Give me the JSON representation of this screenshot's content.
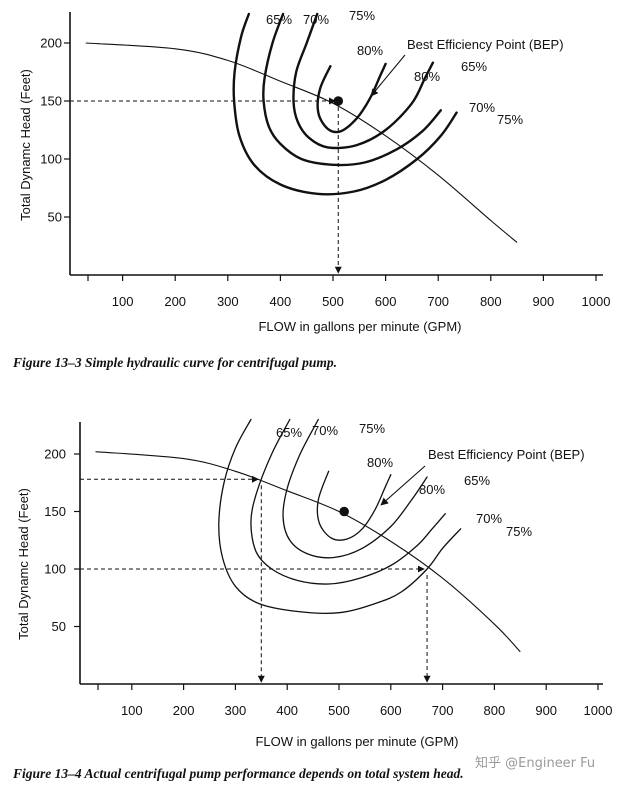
{
  "chart_data": [
    {
      "type": "line",
      "caption": "Figure 13–3  Simple hydraulic curve for centrifugal pump.",
      "xlabel": "FLOW in gallons per minute (GPM)",
      "ylabel": "Total Dynamc Head (Feet)",
      "xlim": [
        0,
        1000
      ],
      "ylim": [
        0,
        225
      ],
      "xticks": [
        "100",
        "200",
        "300",
        "400",
        "500",
        "600",
        "700",
        "800",
        "900",
        "1000"
      ],
      "yticks": [
        "50",
        "100",
        "150",
        "200"
      ],
      "system_curve": {
        "x": [
          30,
          200,
          300,
          400,
          500,
          600,
          700,
          800,
          850
        ],
        "y": [
          200,
          195,
          185,
          167,
          148,
          120,
          86,
          47,
          28
        ]
      },
      "efficiency_curves": [
        {
          "label_left": "65%",
          "label_right": "65%",
          "points": [
            [
              340,
              225
            ],
            [
              325,
              205
            ],
            [
              313,
              175
            ],
            [
              312,
              150
            ],
            [
              322,
              120
            ],
            [
              350,
              95
            ],
            [
              400,
              78
            ],
            [
              470,
              70
            ],
            [
              540,
              72
            ],
            [
              600,
              82
            ],
            [
              660,
              100
            ],
            [
              705,
              120
            ],
            [
              735,
              140
            ]
          ]
        },
        {
          "label_left": "70%",
          "label_right": "70%",
          "points": [
            [
              405,
              225
            ],
            [
              385,
              200
            ],
            [
              370,
              170
            ],
            [
              368,
              150
            ],
            [
              378,
              128
            ],
            [
              400,
              113
            ],
            [
              440,
              100
            ],
            [
              500,
              95
            ],
            [
              560,
              97
            ],
            [
              620,
              108
            ],
            [
              670,
              124
            ],
            [
              705,
              142
            ]
          ]
        },
        {
          "label_left": "75%",
          "label_right": "75%",
          "points": [
            [
              470,
              225
            ],
            [
              450,
              200
            ],
            [
              430,
              175
            ],
            [
              425,
              150
            ],
            [
              433,
              132
            ],
            [
              455,
              118
            ],
            [
              490,
              110
            ],
            [
              545,
              112
            ],
            [
              600,
              125
            ],
            [
              650,
              148
            ],
            [
              675,
              170
            ],
            [
              690,
              183
            ]
          ]
        },
        {
          "label_left": "80%",
          "label_right": "80%",
          "points": [
            [
              495,
              180
            ],
            [
              475,
              160
            ],
            [
              472,
              140
            ],
            [
              490,
              126
            ],
            [
              515,
              124
            ],
            [
              545,
              135
            ],
            [
              570,
              152
            ],
            [
              590,
              172
            ],
            [
              600,
              182
            ]
          ]
        }
      ],
      "bep": {
        "x": 510,
        "y": 150,
        "label": "Best Efficiency Point (BEP)"
      },
      "reference_lines": [
        {
          "h": 150,
          "v": 510
        }
      ]
    },
    {
      "type": "line",
      "caption": "Figure 13–4  Actual centrifugal pump performance depends on total system head.",
      "xlabel": "FLOW in gallons per minute (GPM)",
      "ylabel": "Total Dynamc Head (Feet)",
      "xlim": [
        0,
        1000
      ],
      "ylim": [
        0,
        230
      ],
      "xticks": [
        "100",
        "200",
        "300",
        "400",
        "500",
        "600",
        "700",
        "800",
        "900",
        "1000"
      ],
      "yticks": [
        "50",
        "100",
        "150",
        "200"
      ],
      "system_curve": {
        "x": [
          30,
          200,
          300,
          400,
          500,
          600,
          700,
          800,
          850
        ],
        "y": [
          202,
          196,
          185,
          168,
          150,
          124,
          92,
          52,
          28
        ]
      },
      "efficiency_curves": [
        {
          "label_left": "65%",
          "label_right": "65%",
          "points": [
            [
              330,
              230
            ],
            [
              300,
              205
            ],
            [
              278,
              175
            ],
            [
              268,
              140
            ],
            [
              275,
              110
            ],
            [
              300,
              85
            ],
            [
              345,
              70
            ],
            [
              420,
              63
            ],
            [
              500,
              62
            ],
            [
              570,
              70
            ],
            [
              620,
              80
            ],
            [
              670,
              100
            ],
            [
              700,
              118
            ],
            [
              735,
              135
            ]
          ]
        },
        {
          "label_left": "70%",
          "label_right": "70%",
          "points": [
            [
              405,
              230
            ],
            [
              370,
              200
            ],
            [
              340,
              165
            ],
            [
              330,
              140
            ],
            [
              340,
              115
            ],
            [
              370,
              100
            ],
            [
              420,
              90
            ],
            [
              480,
              87
            ],
            [
              540,
              92
            ],
            [
              600,
              103
            ],
            [
              650,
              120
            ],
            [
              680,
              135
            ],
            [
              705,
              148
            ]
          ]
        },
        {
          "label_left": "75%",
          "label_right": "75%",
          "points": [
            [
              460,
              230
            ],
            [
              425,
              200
            ],
            [
              400,
              170
            ],
            [
              392,
              145
            ],
            [
              405,
              125
            ],
            [
              440,
              113
            ],
            [
              490,
              110
            ],
            [
              545,
              118
            ],
            [
              600,
              137
            ],
            [
              640,
              160
            ],
            [
              670,
              180
            ]
          ]
        },
        {
          "label_left": "80%",
          "label_right": "80%",
          "points": [
            [
              480,
              185
            ],
            [
              460,
              160
            ],
            [
              462,
              140
            ],
            [
              485,
              127
            ],
            [
              515,
              126
            ],
            [
              545,
              135
            ],
            [
              570,
              152
            ],
            [
              590,
              172
            ],
            [
              600,
              182
            ]
          ]
        }
      ],
      "bep": {
        "x": 510,
        "y": 150,
        "label": "Best Efficiency Point (BEP)"
      },
      "reference_lines": [
        {
          "h": 178,
          "v": 350
        },
        {
          "h": 100,
          "v": 670
        }
      ]
    }
  ],
  "watermark": "知乎 @Engineer Fu"
}
